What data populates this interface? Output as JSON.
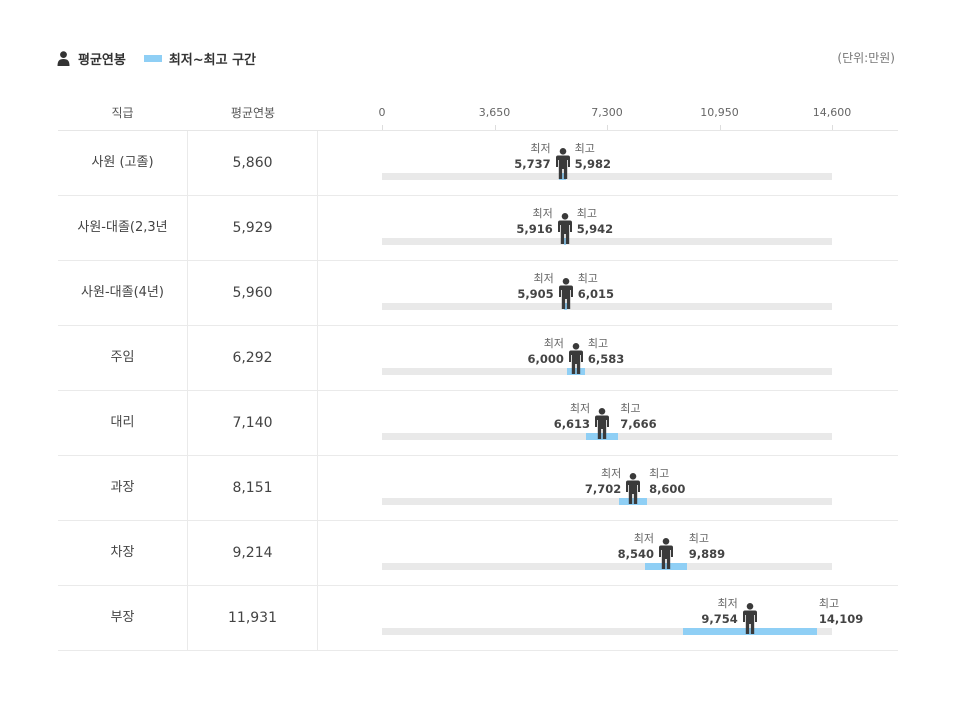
{
  "legend": {
    "avg_label": "평균연봉",
    "range_label": "최저~최고 구간"
  },
  "unit_label": "(단위:만원)",
  "header": {
    "grade": "직급",
    "avg": "평균연봉"
  },
  "labels": {
    "min": "최저",
    "max": "최고"
  },
  "colors": {
    "range": "#8fcff5",
    "track": "#e9e9e9",
    "figure": "#3a3a3a"
  },
  "chart_data": {
    "type": "table",
    "axis": {
      "min": 0,
      "max": 14600,
      "ticks": [
        "0",
        "3,650",
        "7,300",
        "10,950",
        "14,600"
      ],
      "tick_values": [
        0,
        3650,
        7300,
        10950,
        14600
      ]
    },
    "rows": [
      {
        "grade": "사원 (고졸)",
        "avg": 5860,
        "avg_text": "5,860",
        "min": 5737,
        "min_text": "5,737",
        "max": 5982,
        "max_text": "5,982"
      },
      {
        "grade": "사원-대졸(2,3년",
        "avg": 5929,
        "avg_text": "5,929",
        "min": 5916,
        "min_text": "5,916",
        "max": 5942,
        "max_text": "5,942"
      },
      {
        "grade": "사원-대졸(4년)",
        "avg": 5960,
        "avg_text": "5,960",
        "min": 5905,
        "min_text": "5,905",
        "max": 6015,
        "max_text": "6,015"
      },
      {
        "grade": "주임",
        "avg": 6292,
        "avg_text": "6,292",
        "min": 6000,
        "min_text": "6,000",
        "max": 6583,
        "max_text": "6,583"
      },
      {
        "grade": "대리",
        "avg": 7140,
        "avg_text": "7,140",
        "min": 6613,
        "min_text": "6,613",
        "max": 7666,
        "max_text": "7,666"
      },
      {
        "grade": "과장",
        "avg": 8151,
        "avg_text": "8,151",
        "min": 7702,
        "min_text": "7,702",
        "max": 8600,
        "max_text": "8,600"
      },
      {
        "grade": "차장",
        "avg": 9214,
        "avg_text": "9,214",
        "min": 8540,
        "min_text": "8,540",
        "max": 9889,
        "max_text": "9,889"
      },
      {
        "grade": "부장",
        "avg": 11931,
        "avg_text": "11,931",
        "min": 9754,
        "min_text": "9,754",
        "max": 14109,
        "max_text": "14,109"
      }
    ]
  }
}
